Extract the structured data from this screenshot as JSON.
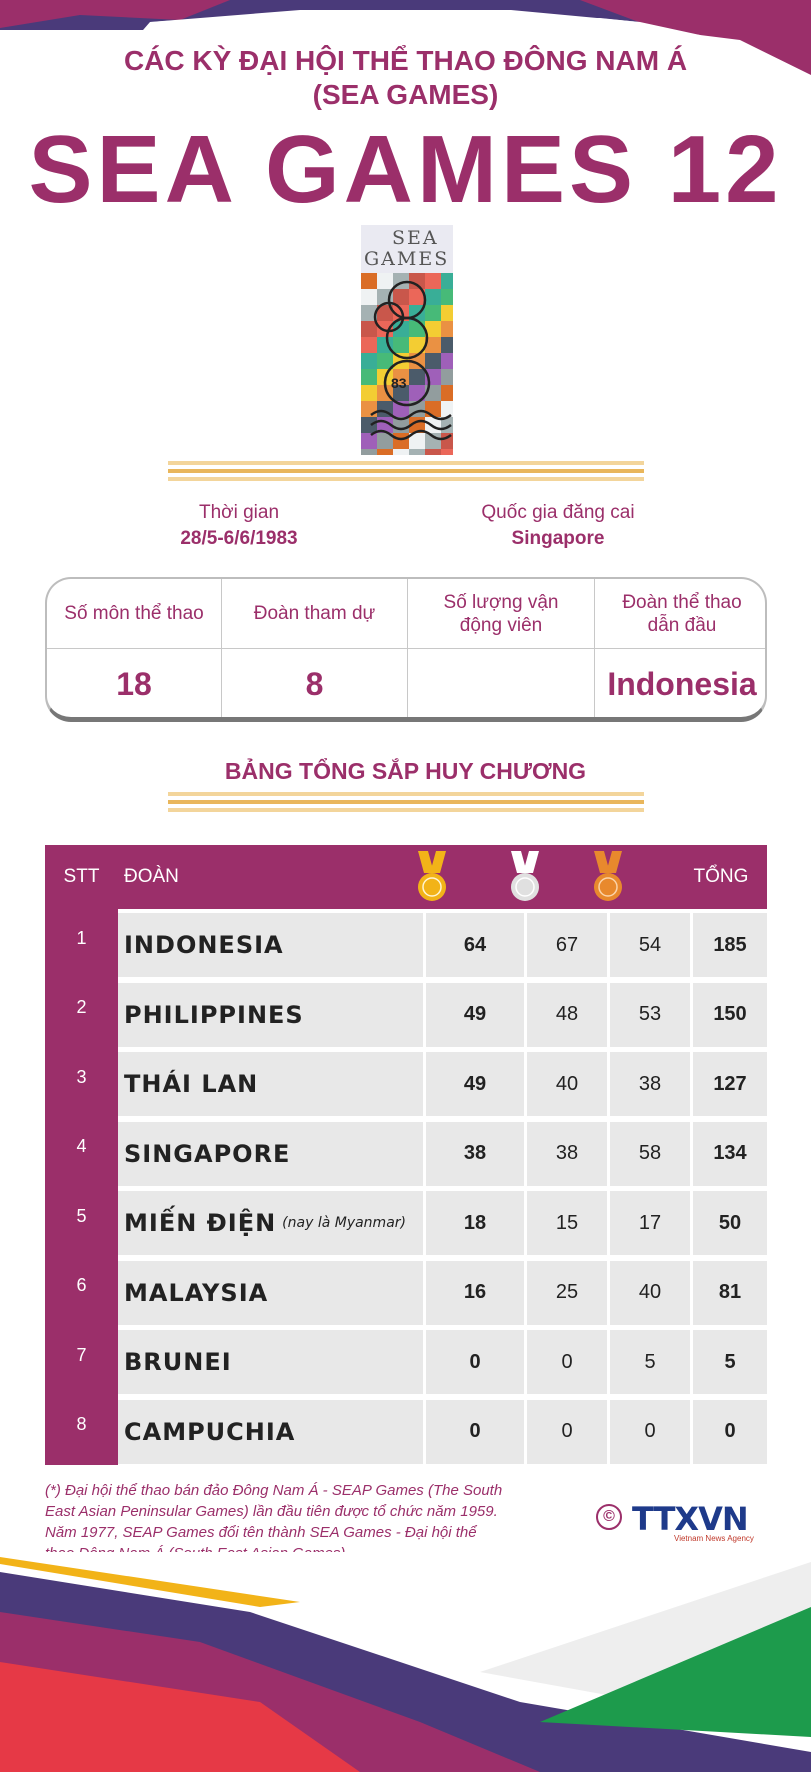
{
  "header": {
    "supertitle_line1": "CÁC KỲ ĐẠI HỘI THỂ THAO ĐÔNG NAM Á",
    "supertitle_line2": "(SEA GAMES)",
    "title": "SEA GAMES 12"
  },
  "logo": {
    "text_line1": "SEA",
    "text_line2": "GAMES",
    "numerals": "83"
  },
  "event_info": {
    "time_label": "Thời gian",
    "time_value": "28/5-6/6/1983",
    "host_label": "Quốc gia đăng cai",
    "host_value": "Singapore"
  },
  "stats": [
    {
      "label": "Số môn thể thao",
      "value": "18"
    },
    {
      "label": "Đoàn tham dự",
      "value": "8"
    },
    {
      "label": "Số lượng vận động viên",
      "value": ""
    },
    {
      "label": "Đoàn thể thao dẫn đầu",
      "value": "Indonesia"
    }
  ],
  "medal_table": {
    "title": "BẢNG TỔNG SẮP HUY CHƯƠNG",
    "headers": {
      "rank": "STT",
      "team": "ĐOÀN",
      "total": "TỔNG"
    },
    "medal_colors": {
      "gold": "#f2b318",
      "silver": "#d9d9d9",
      "bronze": "#e8892d"
    },
    "rows": [
      {
        "rank": "1",
        "team": "INDONESIA",
        "note": "",
        "gold": "64",
        "silver": "67",
        "bronze": "54",
        "total": "185"
      },
      {
        "rank": "2",
        "team": "PHILIPPINES",
        "note": "",
        "gold": "49",
        "silver": "48",
        "bronze": "53",
        "total": "150"
      },
      {
        "rank": "3",
        "team": "THÁI LAN",
        "note": "",
        "gold": "49",
        "silver": "40",
        "bronze": "38",
        "total": "127"
      },
      {
        "rank": "4",
        "team": "SINGAPORE",
        "note": "",
        "gold": "38",
        "silver": "38",
        "bronze": "58",
        "total": "134"
      },
      {
        "rank": "5",
        "team": "MIẾN ĐIỆN",
        "note": "(nay là Myanmar)",
        "gold": "18",
        "silver": "15",
        "bronze": "17",
        "total": "50"
      },
      {
        "rank": "6",
        "team": "MALAYSIA",
        "note": "",
        "gold": "16",
        "silver": "25",
        "bronze": "40",
        "total": "81"
      },
      {
        "rank": "7",
        "team": "BRUNEI",
        "note": "",
        "gold": "0",
        "silver": "0",
        "bronze": "5",
        "total": "5"
      },
      {
        "rank": "8",
        "team": "CAMPUCHIA",
        "note": "",
        "gold": "0",
        "silver": "0",
        "bronze": "0",
        "total": "0"
      }
    ]
  },
  "footnote": "(*) Đại hội thể thao bán đảo Đông Nam Á - SEAP Games (The South East Asian Peninsular Games) lần đầu tiên được tổ chức năm 1959. Năm 1977, SEAP Games đổi tên thành SEA Games - Đại hội thể thao Đông Nam Á (South East Asian Games)",
  "brand": {
    "copyright": "©",
    "name": "TTXVN",
    "subtitle": "Vietnam News Agency"
  },
  "colors": {
    "primary": "#9b2f6a",
    "navy": "#4a3a7a",
    "gold_bar": "#e9b65b",
    "red": "#e63946",
    "green": "#1d9b4c"
  }
}
